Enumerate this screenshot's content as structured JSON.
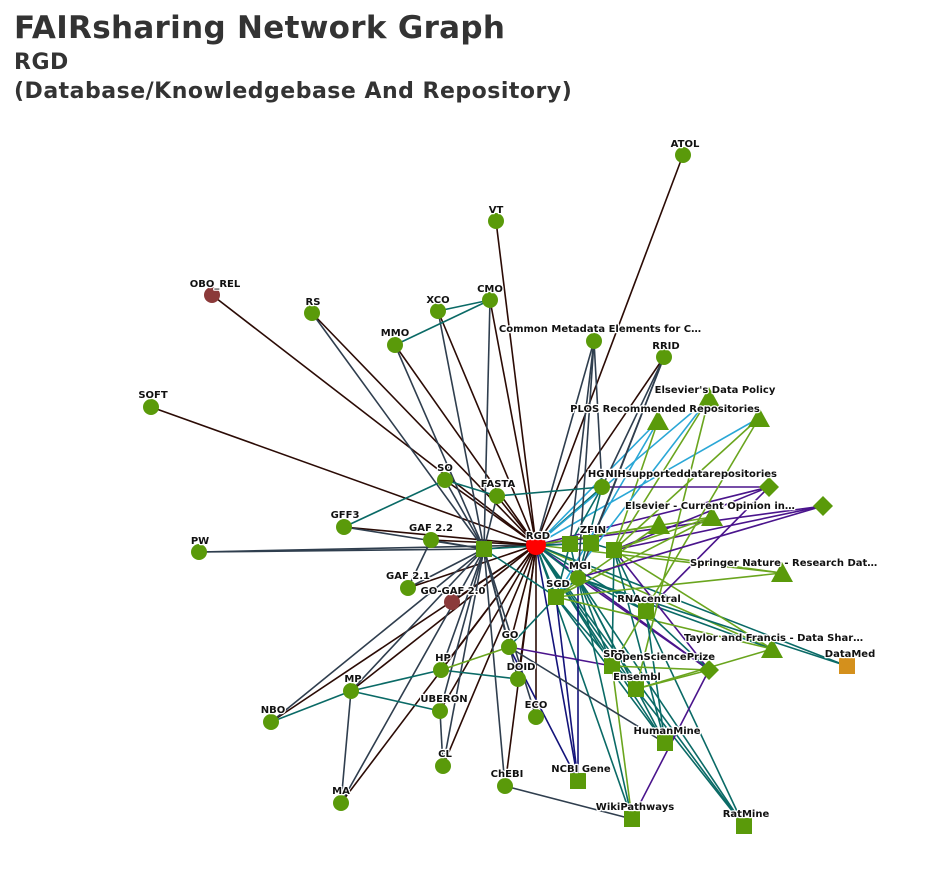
{
  "header": {
    "title": "FAIRsharing Network Graph",
    "subtitle": "RGD",
    "type_line": "(Database/Knowledgebase And Repository)"
  },
  "colors": {
    "standard_node": "#5a9a0a",
    "center_node": "#ff0000",
    "deprecated_node": "#8b3a3a",
    "datamed_node": "#d4901c",
    "edge_dark": "#2b0b05",
    "edge_slate": "#2f3e4e",
    "edge_teal": "#0a6a66",
    "edge_navy": "#13137a",
    "edge_purple": "#4a148c",
    "edge_olive": "#6aa51e",
    "edge_sky": "#2aa7d6"
  },
  "legend_note": "",
  "nodes": [
    {
      "id": "RGD",
      "label": "RGD",
      "shape": "circle",
      "color": "center"
    },
    {
      "id": "ATOL",
      "label": "ATOL",
      "shape": "circle",
      "color": "standard"
    },
    {
      "id": "VT",
      "label": "VT",
      "shape": "circle",
      "color": "standard"
    },
    {
      "id": "OBO_REL",
      "label": "OBO_REL",
      "shape": "circle",
      "color": "deprecated"
    },
    {
      "id": "RS",
      "label": "RS",
      "shape": "circle",
      "color": "standard"
    },
    {
      "id": "XCO",
      "label": "XCO",
      "shape": "circle",
      "color": "standard"
    },
    {
      "id": "CMO",
      "label": "CMO",
      "shape": "circle",
      "color": "standard"
    },
    {
      "id": "MMO",
      "label": "MMO",
      "shape": "circle",
      "color": "standard"
    },
    {
      "id": "CMEC",
      "label": "Common Metadata Elements for C…",
      "shape": "circle",
      "color": "standard"
    },
    {
      "id": "RRID",
      "label": "RRID",
      "shape": "circle",
      "color": "standard"
    },
    {
      "id": "SOFT",
      "label": "SOFT",
      "shape": "circle",
      "color": "standard"
    },
    {
      "id": "ElsevierDP",
      "label": "Elsevier's Data Policy",
      "shape": "triangle",
      "color": "standard"
    },
    {
      "id": "PLOS",
      "label": "PLOS Recommended Repositories",
      "shape": "triangle",
      "color": "standard"
    },
    {
      "id": "PLOS2",
      "label": "",
      "shape": "triangle",
      "color": "standard"
    },
    {
      "id": "SO",
      "label": "SO",
      "shape": "circle",
      "color": "standard"
    },
    {
      "id": "FASTA",
      "label": "FASTA",
      "shape": "circle",
      "color": "standard"
    },
    {
      "id": "HGNC",
      "label": "HGNC",
      "shape": "circle",
      "color": "standard"
    },
    {
      "id": "NIH",
      "label": "NIHsupporteddatarepositories",
      "shape": "diamond",
      "color": "standard"
    },
    {
      "id": "NIH2",
      "label": "",
      "shape": "diamond",
      "color": "standard"
    },
    {
      "id": "ElsevierCO",
      "label": "Elsevier - Current Opinion in…",
      "shape": "triangle",
      "color": "standard"
    },
    {
      "id": "ElsevierCO2",
      "label": "",
      "shape": "triangle",
      "color": "standard"
    },
    {
      "id": "GFF3",
      "label": "GFF3",
      "shape": "circle",
      "color": "standard"
    },
    {
      "id": "GAF22",
      "label": "GAF 2.2",
      "shape": "circle",
      "color": "standard"
    },
    {
      "id": "PW",
      "label": "PW",
      "shape": "circle",
      "color": "standard"
    },
    {
      "id": "Hub",
      "label": "",
      "shape": "square",
      "color": "standard"
    },
    {
      "id": "ZFIN",
      "label": "ZFIN",
      "shape": "square",
      "color": "standard"
    },
    {
      "id": "ZFIN2",
      "label": "",
      "shape": "square",
      "color": "standard"
    },
    {
      "id": "MGI2",
      "label": "",
      "shape": "square",
      "color": "standard"
    },
    {
      "id": "MGI",
      "label": "MGI",
      "shape": "circle",
      "color": "standard"
    },
    {
      "id": "SpringerNature",
      "label": "Springer Nature - Research Dat…",
      "shape": "triangle",
      "color": "standard"
    },
    {
      "id": "GAF21",
      "label": "GAF 2.1",
      "shape": "circle",
      "color": "standard"
    },
    {
      "id": "GOGAF20",
      "label": "GO-GAF 2.0",
      "shape": "circle",
      "color": "deprecated"
    },
    {
      "id": "SGD",
      "label": "SGD",
      "shape": "square",
      "color": "standard"
    },
    {
      "id": "RNAcentral",
      "label": "RNAcentral",
      "shape": "square",
      "color": "standard"
    },
    {
      "id": "TaylorFrancis",
      "label": "Taylor and Francis - Data Shar…",
      "shape": "triangle",
      "color": "standard"
    },
    {
      "id": "DataMed",
      "label": "DataMed",
      "shape": "square",
      "color": "datamed"
    },
    {
      "id": "GO",
      "label": "GO",
      "shape": "circle",
      "color": "standard"
    },
    {
      "id": "SPP",
      "label": "SPP",
      "shape": "square",
      "color": "standard"
    },
    {
      "id": "OSP",
      "label": "OpenSciencePrize",
      "shape": "diamond",
      "color": "standard"
    },
    {
      "id": "HP",
      "label": "HP",
      "shape": "circle",
      "color": "standard"
    },
    {
      "id": "DOID",
      "label": "DOID",
      "shape": "circle",
      "color": "standard"
    },
    {
      "id": "Ensembl",
      "label": "Ensembl",
      "shape": "square",
      "color": "standard"
    },
    {
      "id": "MP",
      "label": "MP",
      "shape": "circle",
      "color": "standard"
    },
    {
      "id": "NBO",
      "label": "NBO",
      "shape": "circle",
      "color": "standard"
    },
    {
      "id": "UBERON",
      "label": "UBERON",
      "shape": "circle",
      "color": "standard"
    },
    {
      "id": "ECO",
      "label": "ECO",
      "shape": "circle",
      "color": "standard"
    },
    {
      "id": "HumanMine",
      "label": "HumanMine",
      "shape": "square",
      "color": "standard"
    },
    {
      "id": "CL",
      "label": "CL",
      "shape": "circle",
      "color": "standard"
    },
    {
      "id": "CHEBI",
      "label": "ChEBI",
      "shape": "circle",
      "color": "standard"
    },
    {
      "id": "NCBIGene",
      "label": "NCBI Gene",
      "shape": "square",
      "color": "standard"
    },
    {
      "id": "MA",
      "label": "MA",
      "shape": "circle",
      "color": "standard"
    },
    {
      "id": "WikiPathways",
      "label": "WikiPathways",
      "shape": "square",
      "color": "standard"
    },
    {
      "id": "RatMine",
      "label": "RatMine",
      "shape": "square",
      "color": "standard"
    }
  ],
  "edges": [
    [
      "RGD",
      "ATOL",
      "edge_dark"
    ],
    [
      "RGD",
      "VT",
      "edge_dark"
    ],
    [
      "RGD",
      "OBO_REL",
      "edge_dark"
    ],
    [
      "RGD",
      "RS",
      "edge_dark"
    ],
    [
      "RGD",
      "XCO",
      "edge_dark"
    ],
    [
      "RGD",
      "CMO",
      "edge_dark"
    ],
    [
      "RGD",
      "MMO",
      "edge_dark"
    ],
    [
      "RGD",
      "SOFT",
      "edge_dark"
    ],
    [
      "RGD",
      "PW",
      "edge_slate"
    ],
    [
      "RGD",
      "SO",
      "edge_dark"
    ],
    [
      "RGD",
      "FASTA",
      "edge_dark"
    ],
    [
      "RGD",
      "GFF3",
      "edge_dark"
    ],
    [
      "RGD",
      "GAF22",
      "edge_dark"
    ],
    [
      "RGD",
      "GAF21",
      "edge_dark"
    ],
    [
      "RGD",
      "GOGAF20",
      "edge_dark"
    ],
    [
      "RGD",
      "NBO",
      "edge_dark"
    ],
    [
      "RGD",
      "MA",
      "edge_dark"
    ],
    [
      "RGD",
      "MP",
      "edge_dark"
    ],
    [
      "RGD",
      "CHEBI",
      "edge_dark"
    ],
    [
      "RGD",
      "CL",
      "edge_dark"
    ],
    [
      "RGD",
      "HP",
      "edge_dark"
    ],
    [
      "RGD",
      "UBERON",
      "edge_dark"
    ],
    [
      "RGD",
      "DOID",
      "edge_dark"
    ],
    [
      "RGD",
      "ECO",
      "edge_dark"
    ],
    [
      "RGD",
      "GO",
      "edge_dark"
    ],
    [
      "RGD",
      "CMEC",
      "edge_slate"
    ],
    [
      "RGD",
      "RRID",
      "edge_dark"
    ],
    [
      "RGD",
      "HGNC",
      "edge_teal"
    ],
    [
      "RGD",
      "NIH",
      "edge_purple"
    ],
    [
      "RGD",
      "NIH2",
      "edge_purple"
    ],
    [
      "RGD",
      "ElsevierDP",
      "edge_sky"
    ],
    [
      "RGD",
      "PLOS",
      "edge_sky"
    ],
    [
      "RGD",
      "PLOS2",
      "edge_sky"
    ],
    [
      "RGD",
      "ElsevierCO",
      "edge_olive"
    ],
    [
      "RGD",
      "ElsevierCO2",
      "edge_olive"
    ],
    [
      "RGD",
      "SpringerNature",
      "edge_olive"
    ],
    [
      "RGD",
      "TaylorFrancis",
      "edge_olive"
    ],
    [
      "RGD",
      "DataMed",
      "edge_teal"
    ],
    [
      "RGD",
      "OSP",
      "edge_purple"
    ],
    [
      "RGD",
      "NCBIGene",
      "edge_navy"
    ],
    [
      "RGD",
      "WikiPathways",
      "edge_teal"
    ],
    [
      "RGD",
      "HumanMine",
      "edge_teal"
    ],
    [
      "RGD",
      "RatMine",
      "edge_teal"
    ],
    [
      "RGD",
      "Ensembl",
      "edge_teal"
    ],
    [
      "RGD",
      "SPP",
      "edge_teal"
    ],
    [
      "RGD",
      "RNAcentral",
      "edge_teal"
    ],
    [
      "RGD",
      "SGD",
      "edge_teal"
    ],
    [
      "RGD",
      "MGI",
      "edge_teal"
    ],
    [
      "RGD",
      "ZFIN",
      "edge_teal"
    ],
    [
      "RGD",
      "Hub",
      "edge_dark"
    ],
    [
      "Hub",
      "XCO",
      "edge_slate"
    ],
    [
      "Hub",
      "CMO",
      "edge_slate"
    ],
    [
      "Hub",
      "MMO",
      "edge_slate"
    ],
    [
      "Hub",
      "SO",
      "edge_slate"
    ],
    [
      "Hub",
      "FASTA",
      "edge_slate"
    ],
    [
      "Hub",
      "GFF3",
      "edge_slate"
    ],
    [
      "Hub",
      "GAF22",
      "edge_slate"
    ],
    [
      "Hub",
      "GAF21",
      "edge_slate"
    ],
    [
      "Hub",
      "PW",
      "edge_slate"
    ],
    [
      "Hub",
      "MP",
      "edge_slate"
    ],
    [
      "Hub",
      "MA",
      "edge_slate"
    ],
    [
      "Hub",
      "NBO",
      "edge_slate"
    ],
    [
      "Hub",
      "HP",
      "edge_slate"
    ],
    [
      "Hub",
      "CL",
      "edge_slate"
    ],
    [
      "Hub",
      "CHEBI",
      "edge_slate"
    ],
    [
      "Hub",
      "UBERON",
      "edge_slate"
    ],
    [
      "Hub",
      "DOID",
      "edge_slate"
    ],
    [
      "Hub",
      "ECO",
      "edge_slate"
    ],
    [
      "Hub",
      "GO",
      "edge_slate"
    ],
    [
      "Hub",
      "RS",
      "edge_slate"
    ],
    [
      "Hub",
      "ZFIN",
      "edge_teal"
    ],
    [
      "Hub",
      "SGD",
      "edge_teal"
    ],
    [
      "XCO",
      "CMO",
      "edge_teal"
    ],
    [
      "MMO",
      "CMO",
      "edge_teal"
    ],
    [
      "GFF3",
      "SO",
      "edge_teal"
    ],
    [
      "SO",
      "FASTA",
      "edge_teal"
    ],
    [
      "GAF22",
      "GAF21",
      "edge_slate"
    ],
    [
      "MP",
      "NBO",
      "edge_teal"
    ],
    [
      "MP",
      "MA",
      "edge_slate"
    ],
    [
      "MP",
      "HP",
      "edge_teal"
    ],
    [
      "HP",
      "GO",
      "edge_olive"
    ],
    [
      "UBERON",
      "CL",
      "edge_slate"
    ],
    [
      "UBERON",
      "MP",
      "edge_teal"
    ],
    [
      "CHEBI",
      "WikiPathways",
      "edge_slate"
    ],
    [
      "GO",
      "SPP",
      "edge_purple"
    ],
    [
      "GO",
      "SGD",
      "edge_teal"
    ],
    [
      "DOID",
      "HP",
      "edge_teal"
    ],
    [
      "ZFIN",
      "MGI",
      "edge_teal"
    ],
    [
      "ZFIN",
      "SGD",
      "edge_teal"
    ],
    [
      "ZFIN",
      "ZFIN2",
      "edge_teal"
    ],
    [
      "ZFIN2",
      "MGI2",
      "edge_teal"
    ],
    [
      "MGI",
      "SGD",
      "edge_teal"
    ],
    [
      "MGI",
      "RNAcentral",
      "edge_teal"
    ],
    [
      "MGI",
      "HumanMine",
      "edge_teal"
    ],
    [
      "MGI",
      "RatMine",
      "edge_teal"
    ],
    [
      "MGI",
      "Ensembl",
      "edge_teal"
    ],
    [
      "MGI",
      "DataMed",
      "edge_teal"
    ],
    [
      "MGI",
      "SPP",
      "edge_teal"
    ],
    [
      "MGI",
      "NCBIGene",
      "edge_navy"
    ],
    [
      "MGI",
      "WikiPathways",
      "edge_teal"
    ],
    [
      "MGI",
      "TaylorFrancis",
      "edge_teal"
    ],
    [
      "MGI",
      "OSP",
      "edge_purple"
    ],
    [
      "MGI2",
      "ElsevierDP",
      "edge_olive"
    ],
    [
      "MGI2",
      "PLOS",
      "edge_olive"
    ],
    [
      "MGI2",
      "PLOS2",
      "edge_olive"
    ],
    [
      "MGI2",
      "NIH",
      "edge_purple"
    ],
    [
      "MGI2",
      "NIH2",
      "edge_purple"
    ],
    [
      "MGI2",
      "SpringerNature",
      "edge_olive"
    ],
    [
      "MGI2",
      "TaylorFrancis",
      "edge_olive"
    ],
    [
      "MGI2",
      "ElsevierCO2",
      "edge_olive"
    ],
    [
      "MGI2",
      "RatMine",
      "edge_teal"
    ],
    [
      "MGI2",
      "HumanMine",
      "edge_teal"
    ],
    [
      "MGI2",
      "OSP",
      "edge_purple"
    ],
    [
      "MGI2",
      "SPP",
      "edge_teal"
    ],
    [
      "SGD",
      "ElsevierDP",
      "edge_sky"
    ],
    [
      "SGD",
      "PLOS",
      "edge_sky"
    ],
    [
      "SGD",
      "SpringerNature",
      "edge_olive"
    ],
    [
      "SGD",
      "TaylorFrancis",
      "edge_olive"
    ],
    [
      "SGD",
      "NCBIGene",
      "edge_navy"
    ],
    [
      "SGD",
      "HumanMine",
      "edge_teal"
    ],
    [
      "SGD",
      "Ensembl",
      "edge_teal"
    ],
    [
      "HGNC",
      "CMEC",
      "edge_slate"
    ],
    [
      "HGNC",
      "RRID",
      "edge_slate"
    ],
    [
      "HGNC",
      "NIH",
      "edge_purple"
    ],
    [
      "HGNC",
      "MGI",
      "edge_teal"
    ],
    [
      "HGNC",
      "ZFIN",
      "edge_teal"
    ],
    [
      "CMEC",
      "ZFIN",
      "edge_slate"
    ],
    [
      "CMEC",
      "MGI",
      "edge_slate"
    ],
    [
      "RRID",
      "ZFIN2",
      "edge_slate"
    ],
    [
      "RRID",
      "MGI",
      "edge_slate"
    ],
    [
      "FASTA",
      "HGNC",
      "edge_teal"
    ],
    [
      "ElsevierCO",
      "SGD",
      "edge_olive"
    ],
    [
      "ElsevierCO2",
      "SGD",
      "edge_olive"
    ],
    [
      "PLOS2",
      "SPP",
      "edge_olive"
    ],
    [
      "ElsevierDP",
      "Ensembl",
      "edge_olive"
    ],
    [
      "NIH",
      "RNAcentral",
      "edge_purple"
    ],
    [
      "NIH2",
      "MGI",
      "edge_purple"
    ],
    [
      "SPP",
      "Ensembl",
      "edge_teal"
    ],
    [
      "SPP",
      "WikiPathways",
      "edge_olive"
    ],
    [
      "SPP",
      "OSP",
      "edge_olive"
    ],
    [
      "RNAcentral",
      "OSP",
      "edge_teal"
    ],
    [
      "RNAcentral",
      "HumanMine",
      "edge_teal"
    ],
    [
      "Ensembl",
      "RatMine",
      "edge_teal"
    ],
    [
      "OSP",
      "WikiPathways",
      "edge_purple"
    ],
    [
      "TaylorFrancis",
      "Ensembl",
      "edge_olive"
    ],
    [
      "Ensembl",
      "OSP",
      "edge_olive"
    ],
    [
      "GO",
      "HumanMine",
      "edge_slate"
    ],
    [
      "GO",
      "NCBIGene",
      "edge_navy"
    ]
  ]
}
